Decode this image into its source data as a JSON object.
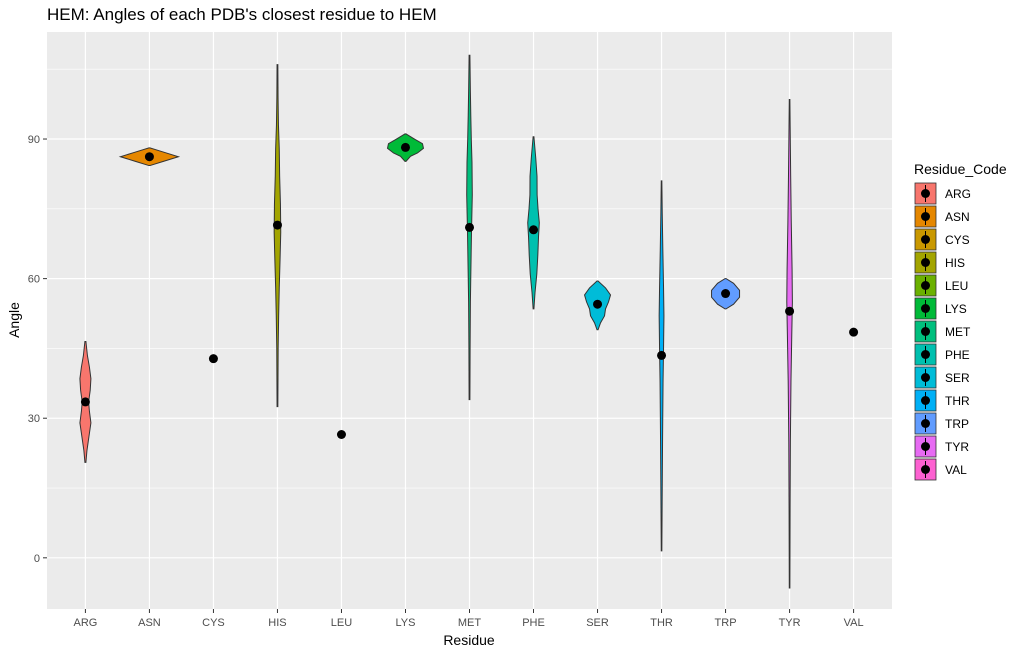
{
  "chart_data": {
    "type": "violin",
    "title": "HEM: Angles of each PDB's closest residue to HEM",
    "xlabel": "Residue",
    "ylabel": "Angle",
    "ylim": [
      -11,
      113
    ],
    "y_ticks": [
      0,
      30,
      60,
      90
    ],
    "grid": true,
    "legend": {
      "title": "Residue_Code",
      "position": "right"
    },
    "categories": [
      "ARG",
      "ASN",
      "CYS",
      "HIS",
      "LEU",
      "LYS",
      "MET",
      "PHE",
      "SER",
      "THR",
      "TRP",
      "TYR",
      "VAL"
    ],
    "colors": [
      "#F8766D",
      "#E58700",
      "#C99800",
      "#A3A500",
      "#6BB100",
      "#00BA38",
      "#00BF7D",
      "#00C0AF",
      "#00BCD8",
      "#00B0F6",
      "#619CFF",
      "#B983FF",
      "#E76BF3",
      "#FD61D1",
      "#FF67A4"
    ],
    "series": [
      {
        "category": "ARG",
        "color": "#F8766D",
        "point": 33.5,
        "min": 20.5,
        "max": 46.5,
        "profile": [
          [
            20.5,
            0.5
          ],
          [
            23,
            1.5
          ],
          [
            26,
            3.5
          ],
          [
            29,
            5.5
          ],
          [
            31.5,
            4
          ],
          [
            33.5,
            3.2
          ],
          [
            36,
            4.8
          ],
          [
            38.5,
            5.5
          ],
          [
            41,
            4
          ],
          [
            43.5,
            2
          ],
          [
            46.5,
            0.5
          ]
        ]
      },
      {
        "category": "ASN",
        "color": "#E58700",
        "point": 86.2,
        "min": 84.3,
        "max": 88.1,
        "profile": [
          [
            84.3,
            0.5
          ],
          [
            85.2,
            14
          ],
          [
            86.2,
            29
          ],
          [
            87.2,
            14
          ],
          [
            88.1,
            0.5
          ]
        ]
      },
      {
        "category": "CYS",
        "color": "#C99800",
        "point": 42.8,
        "min": 42.8,
        "max": 42.8,
        "profile": []
      },
      {
        "category": "HIS",
        "color": "#A3A500",
        "point": 71.5,
        "min": 32.5,
        "max": 106,
        "profile": [
          [
            32.5,
            0.4
          ],
          [
            45,
            0.7
          ],
          [
            52,
            1.2
          ],
          [
            58,
            1.8
          ],
          [
            64,
            2.6
          ],
          [
            70,
            3.3
          ],
          [
            76,
            3.0
          ],
          [
            82,
            2.2
          ],
          [
            88,
            1.8
          ],
          [
            93,
            1.0
          ],
          [
            99,
            0.6
          ],
          [
            106,
            0.4
          ]
        ]
      },
      {
        "category": "LEU",
        "color": "#6BB100",
        "point": 26.5,
        "min": 26.5,
        "max": 26.5,
        "profile": []
      },
      {
        "category": "LYS",
        "color": "#00BA38",
        "point": 88.2,
        "min": 85.2,
        "max": 91.1,
        "profile": [
          [
            85.2,
            0.5
          ],
          [
            86.3,
            5
          ],
          [
            87,
            12
          ],
          [
            88,
            18
          ],
          [
            89,
            17
          ],
          [
            90,
            9
          ],
          [
            91.1,
            0.5
          ]
        ]
      },
      {
        "category": "MET",
        "color": "#00BF7D",
        "point": 71.0,
        "min": 34,
        "max": 108,
        "profile": [
          [
            34,
            0.4
          ],
          [
            45,
            0.6
          ],
          [
            55,
            0.9
          ],
          [
            62,
            1.4
          ],
          [
            70,
            2.0
          ],
          [
            78,
            2.8
          ],
          [
            85,
            2.5
          ],
          [
            90,
            1.8
          ],
          [
            95,
            1.3
          ],
          [
            100,
            0.9
          ],
          [
            108,
            0.4
          ]
        ]
      },
      {
        "category": "PHE",
        "color": "#00C0AF",
        "point": 70.5,
        "min": 53.5,
        "max": 90.5,
        "profile": [
          [
            53.5,
            0.4
          ],
          [
            57,
            1.5
          ],
          [
            61,
            3.3
          ],
          [
            65,
            4.3
          ],
          [
            69,
            5.0
          ],
          [
            72,
            5.8
          ],
          [
            75,
            4.5
          ],
          [
            78,
            3.6
          ],
          [
            82,
            3.5
          ],
          [
            86,
            2.2
          ],
          [
            90.5,
            0.4
          ]
        ]
      },
      {
        "category": "SER",
        "color": "#00BCD8",
        "point": 54.5,
        "min": 49,
        "max": 59.5,
        "profile": [
          [
            49,
            0.5
          ],
          [
            50.5,
            3
          ],
          [
            52,
            7
          ],
          [
            53.5,
            8
          ],
          [
            55,
            11
          ],
          [
            56.5,
            13
          ],
          [
            58,
            8
          ],
          [
            59.5,
            0.5
          ]
        ]
      },
      {
        "category": "THR",
        "color": "#00B0F6",
        "point": 43.5,
        "min": 1.5,
        "max": 81,
        "profile": [
          [
            1.5,
            0.3
          ],
          [
            12,
            0.6
          ],
          [
            25,
            1.0
          ],
          [
            38,
            1.5
          ],
          [
            45,
            2.0
          ],
          [
            52,
            2.4
          ],
          [
            58,
            2.0
          ],
          [
            66,
            1.3
          ],
          [
            74,
            0.7
          ],
          [
            81,
            0.3
          ]
        ]
      },
      {
        "category": "TRP",
        "color": "#619CFF",
        "point": 56.8,
        "min": 53.5,
        "max": 60,
        "profile": [
          [
            53.5,
            0.5
          ],
          [
            54.5,
            8
          ],
          [
            56,
            14
          ],
          [
            57.5,
            14
          ],
          [
            59,
            8
          ],
          [
            60,
            0.5
          ]
        ]
      },
      {
        "category": "TYR",
        "color": "#E76BF3",
        "point": 53.0,
        "min": -6.5,
        "max": 98.5,
        "profile": [
          [
            -6.5,
            0.3
          ],
          [
            10,
            0.5
          ],
          [
            25,
            0.8
          ],
          [
            38,
            1.4
          ],
          [
            48,
            2.2
          ],
          [
            55,
            2.8
          ],
          [
            62,
            2.5
          ],
          [
            72,
            1.7
          ],
          [
            82,
            1.1
          ],
          [
            90,
            0.7
          ],
          [
            98.5,
            0.3
          ]
        ]
      },
      {
        "category": "VAL",
        "color": "#FD61D1",
        "point": 48.5,
        "min": 48.5,
        "max": 48.5,
        "profile": []
      }
    ]
  }
}
